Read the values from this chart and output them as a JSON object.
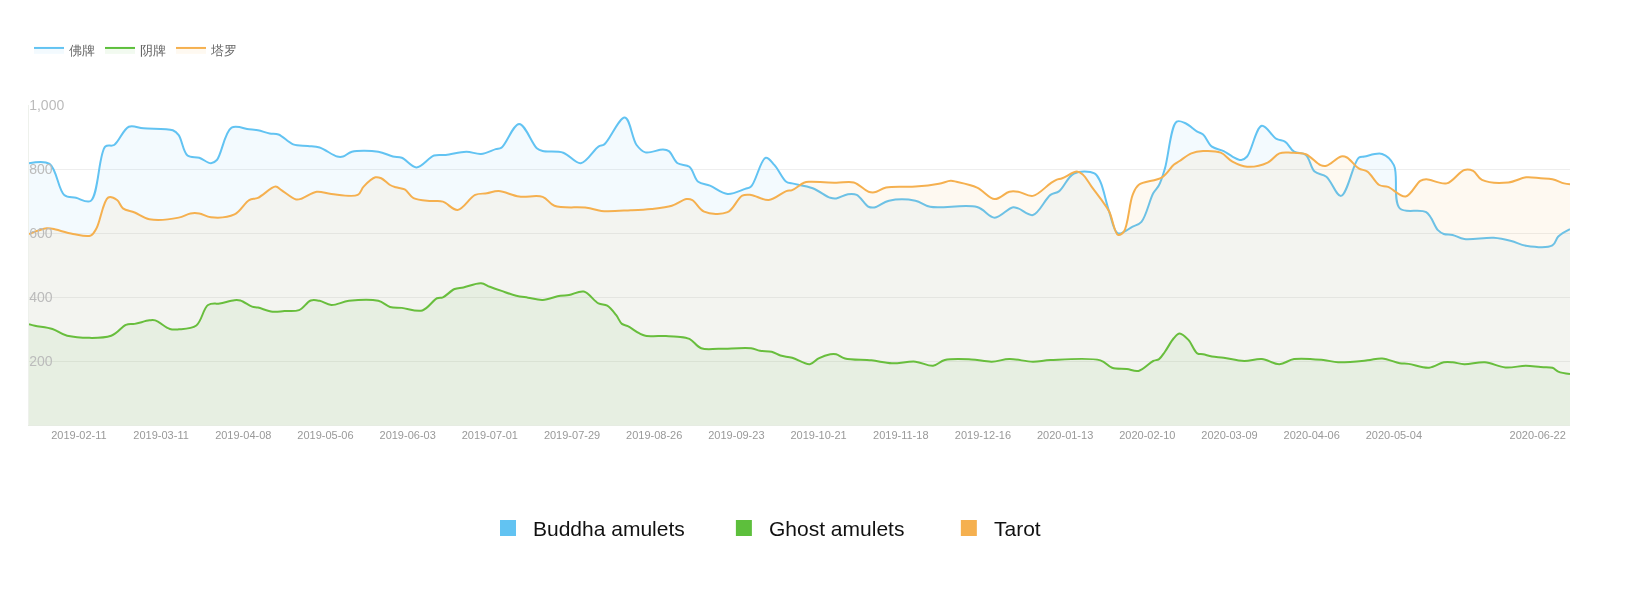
{
  "chart_data": {
    "type": "area",
    "xlim": [
      "2019-01-25",
      "2020-07-03"
    ],
    "xticks": [
      "2019-02-11",
      "2019-03-11",
      "2019-04-08",
      "2019-05-06",
      "2019-06-03",
      "2019-07-01",
      "2019-07-29",
      "2019-08-26",
      "2019-09-23",
      "2019-10-21",
      "2019-11-18",
      "2019-12-16",
      "2020-01-13",
      "2020-02-10",
      "2020-03-09",
      "2020-04-06",
      "2020-05-04",
      "2020-06-22"
    ],
    "ylim": [
      0,
      1000
    ],
    "yticks": [
      200,
      400,
      600,
      800,
      {
        "value": 1000,
        "label": "1,000"
      }
    ],
    "grid": "y",
    "legend": "top left",
    "annotations": [
      "Buddha amulets",
      "Ghost amulets",
      "Tarot"
    ],
    "series": [
      {
        "name": "佛牌",
        "color": "#62c3f2",
        "x": [
          "2019-01-25",
          "2019-02-01",
          "2019-02-06",
          "2019-02-10",
          "2019-02-15",
          "2019-02-20",
          "2019-02-23",
          "2019-02-28",
          "2019-03-05",
          "2019-03-15",
          "2019-03-17",
          "2019-03-20",
          "2019-03-24",
          "2019-03-28",
          "2019-03-30",
          "2019-04-04",
          "2019-04-10",
          "2019-04-13",
          "2019-04-17",
          "2019-04-20",
          "2019-04-25",
          "2019-04-30",
          "2019-05-04",
          "2019-05-10",
          "2019-05-12",
          "2019-05-15",
          "2019-05-24",
          "2019-05-29",
          "2019-06-01",
          "2019-06-06",
          "2019-06-12",
          "2019-06-16",
          "2019-06-23",
          "2019-06-28",
          "2019-07-03",
          "2019-07-05",
          "2019-07-11",
          "2019-07-17",
          "2019-07-19",
          "2019-07-26",
          "2019-08-01",
          "2019-08-07",
          "2019-08-09",
          "2019-08-16",
          "2019-08-20",
          "2019-08-23",
          "2019-08-29",
          "2019-08-31",
          "2019-09-03",
          "2019-09-07",
          "2019-09-10",
          "2019-09-14",
          "2019-09-20",
          "2019-09-26",
          "2019-09-28",
          "2019-10-03",
          "2019-10-06",
          "2019-10-10",
          "2019-10-12",
          "2019-10-19",
          "2019-10-25",
          "2019-10-27",
          "2019-10-31",
          "2019-11-03",
          "2019-11-07",
          "2019-11-09",
          "2019-11-14",
          "2019-11-23",
          "2019-11-28",
          "2019-12-14",
          "2019-12-20",
          "2019-12-26",
          "2019-12-28",
          "2020-01-02",
          "2020-01-08",
          "2020-01-11",
          "2020-01-16",
          "2020-01-23",
          "2020-01-25",
          "2020-01-28",
          "2020-01-31",
          "2020-02-05",
          "2020-02-08",
          "2020-02-12",
          "2020-02-14",
          "2020-02-16",
          "2020-02-20",
          "2020-02-23",
          "2020-02-27",
          "2020-02-29",
          "2020-03-03",
          "2020-03-07",
          "2020-03-10",
          "2020-03-13",
          "2020-03-15",
          "2020-03-20",
          "2020-03-25",
          "2020-03-28",
          "2020-03-31",
          "2020-04-04",
          "2020-04-07",
          "2020-04-11",
          "2020-04-16",
          "2020-04-22",
          "2020-04-24",
          "2020-04-30",
          "2020-05-04",
          "2020-05-06",
          "2020-05-15",
          "2020-05-19",
          "2020-05-21",
          "2020-05-24",
          "2020-05-28",
          "2020-06-07",
          "2020-06-13",
          "2020-06-18",
          "2020-06-27",
          "2020-06-29",
          "2020-07-03"
        ],
        "values": [
          818,
          816,
          719,
          710,
          700,
          870,
          875,
          932,
          927,
          921,
          906,
          842,
          835,
          818,
          828,
          929,
          924,
          921,
          911,
          908,
          877,
          872,
          867,
          839,
          839,
          854,
          854,
          839,
          835,
          805,
          842,
          844,
          854,
          847,
          862,
          867,
          941,
          865,
          856,
          851,
          818,
          870,
          877,
          961,
          875,
          852,
          861,
          856,
          818,
          807,
          760,
          748,
          722,
          738,
          745,
          835,
          812,
          760,
          755,
          740,
          710,
          708,
          721,
          719,
          682,
          680,
          701,
          701,
          682,
          681,
          648,
          680,
          677,
          656,
          719,
          731,
          786,
          786,
          760,
          667,
          599,
          620,
          635,
          724,
          750,
          802,
          948,
          943,
          917,
          908,
          870,
          856,
          839,
          828,
          839,
          935,
          894,
          885,
          854,
          844,
          792,
          776,
          716,
          835,
          839,
          847,
          812,
          677,
          665,
          609,
          597,
          594,
          581,
          585,
          575,
          560,
          561,
          589,
          612
        ]
      },
      {
        "name": "阴牌",
        "color": "#5dbf3c",
        "x": [
          "2019-01-25",
          "2019-01-27",
          "2019-02-02",
          "2019-02-07",
          "2019-02-22",
          "2019-02-27",
          "2019-03-02",
          "2019-03-07",
          "2019-03-09",
          "2019-03-14",
          "2019-03-17",
          "2019-03-23",
          "2019-03-27",
          "2019-03-31",
          "2019-04-05",
          "2019-04-07",
          "2019-04-11",
          "2019-04-13",
          "2019-04-18",
          "2019-04-22",
          "2019-04-27",
          "2019-05-01",
          "2019-05-04",
          "2019-05-08",
          "2019-05-14",
          "2019-05-24",
          "2019-05-28",
          "2019-06-01",
          "2019-06-08",
          "2019-06-13",
          "2019-06-15",
          "2019-06-19",
          "2019-06-22",
          "2019-06-28",
          "2019-07-01",
          "2019-07-05",
          "2019-07-10",
          "2019-07-14",
          "2019-07-19",
          "2019-07-25",
          "2019-07-28",
          "2019-08-02",
          "2019-08-07",
          "2019-08-10",
          "2019-08-13",
          "2019-08-15",
          "2019-08-17",
          "2019-08-21",
          "2019-08-23",
          "2019-08-30",
          "2019-09-03",
          "2019-09-07",
          "2019-09-11",
          "2019-09-17",
          "2019-09-28",
          "2019-10-01",
          "2019-10-05",
          "2019-10-08",
          "2019-10-12",
          "2019-10-18",
          "2019-10-21",
          "2019-10-25",
          "2019-10-27",
          "2019-10-30",
          "2019-11-08",
          "2019-11-15",
          "2019-11-23",
          "2019-11-29",
          "2019-12-03",
          "2019-12-12",
          "2019-12-19",
          "2019-12-25",
          "2020-01-02",
          "2020-01-08",
          "2020-01-25",
          "2020-01-29",
          "2020-02-03",
          "2020-02-07",
          "2020-02-12",
          "2020-02-14",
          "2020-02-16",
          "2020-02-19",
          "2020-02-21",
          "2020-02-24",
          "2020-02-27",
          "2020-02-29",
          "2020-03-03",
          "2020-03-07",
          "2020-03-14",
          "2020-03-20",
          "2020-03-26",
          "2020-03-31",
          "2020-04-10",
          "2020-04-15",
          "2020-04-25",
          "2020-04-30",
          "2020-05-06",
          "2020-05-09",
          "2020-05-16",
          "2020-05-21",
          "2020-05-24",
          "2020-05-28",
          "2020-06-04",
          "2020-06-11",
          "2020-06-18",
          "2020-06-23",
          "2020-06-27",
          "2020-06-29",
          "2020-07-03"
        ],
        "values": [
          315,
          310,
          300,
          279,
          279,
          313,
          316,
          327,
          327,
          300,
          299,
          311,
          375,
          380,
          390,
          389,
          370,
          367,
          354,
          356,
          359,
          389,
          388,
          375,
          388,
          388,
          369,
          366,
          358,
          396,
          399,
          425,
          430,
          443,
          432,
          419,
          404,
          398,
          391,
          404,
          406,
          417,
          380,
          373,
          344,
          316,
          309,
          286,
          279,
          278,
          276,
          269,
          240,
          238,
          240,
          232,
          229,
          217,
          210,
          190,
          208,
          221,
          221,
          208,
          202,
          193,
          198,
          185,
          203,
          205,
          198,
          206,
          198,
          203,
          202,
          179,
          175,
          169,
          200,
          206,
          229,
          271,
          286,
          266,
          224,
          221,
          214,
          210,
          200,
          206,
          190,
          206,
          203,
          196,
          202,
          208,
          193,
          191,
          179,
          196,
          196,
          190,
          196,
          180,
          185,
          181,
          179,
          167,
          159
        ]
      },
      {
        "name": "塔罗",
        "color": "#f5b04f",
        "x": [
          "2019-01-25",
          "2019-01-31",
          "2019-02-02",
          "2019-02-09",
          "2019-02-15",
          "2019-02-17",
          "2019-02-21",
          "2019-02-24",
          "2019-02-26",
          "2019-03-02",
          "2019-03-07",
          "2019-03-17",
          "2019-03-21",
          "2019-03-24",
          "2019-03-28",
          "2019-04-05",
          "2019-04-10",
          "2019-04-13",
          "2019-04-19",
          "2019-04-21",
          "2019-04-26",
          "2019-04-28",
          "2019-05-03",
          "2019-05-08",
          "2019-05-17",
          "2019-05-19",
          "2019-05-23",
          "2019-05-25",
          "2019-05-28",
          "2019-05-30",
          "2019-06-02",
          "2019-06-05",
          "2019-06-11",
          "2019-06-15",
          "2019-06-20",
          "2019-06-26",
          "2019-06-30",
          "2019-07-04",
          "2019-07-11",
          "2019-07-19",
          "2019-07-23",
          "2019-08-03",
          "2019-08-08",
          "2019-08-18",
          "2019-08-25",
          "2019-09-01",
          "2019-09-06",
          "2019-09-08",
          "2019-09-12",
          "2019-09-20",
          "2019-09-25",
          "2019-09-28",
          "2019-10-04",
          "2019-10-10",
          "2019-10-12",
          "2019-10-16",
          "2019-10-18",
          "2019-10-27",
          "2019-11-02",
          "2019-11-07",
          "2019-11-09",
          "2019-11-13",
          "2019-11-23",
          "2019-12-01",
          "2019-12-05",
          "2019-12-07",
          "2019-12-14",
          "2019-12-20",
          "2019-12-25",
          "2019-12-28",
          "2020-01-02",
          "2020-01-08",
          "2020-01-10",
          "2020-01-12",
          "2020-01-17",
          "2020-01-19",
          "2020-01-22",
          "2020-01-25",
          "2020-01-28",
          "2020-01-31",
          "2020-02-02",
          "2020-02-05",
          "2020-02-07",
          "2020-02-15",
          "2020-02-19",
          "2020-02-21",
          "2020-02-25",
          "2020-02-29",
          "2020-03-06",
          "2020-03-10",
          "2020-03-15",
          "2020-03-22",
          "2020-03-26",
          "2020-03-30",
          "2020-04-04",
          "2020-04-09",
          "2020-04-11",
          "2020-04-16",
          "2020-04-18",
          "2020-04-22",
          "2020-04-25",
          "2020-04-29",
          "2020-05-02",
          "2020-05-08",
          "2020-05-13",
          "2020-05-15",
          "2020-05-22",
          "2020-05-28",
          "2020-05-31",
          "2020-06-03",
          "2020-06-12",
          "2020-06-18",
          "2020-06-23",
          "2020-06-27",
          "2020-07-01",
          "2020-07-03"
        ],
        "values": [
          597,
          615,
          613,
          597,
          592,
          615,
          711,
          703,
          677,
          664,
          643,
          648,
          661,
          661,
          649,
          658,
          703,
          710,
          745,
          734,
          705,
          708,
          729,
          722,
          719,
          745,
          774,
          771,
          750,
          743,
          736,
          709,
          700,
          698,
          672,
          719,
          724,
          731,
          714,
          713,
          685,
          679,
          669,
          671,
          675,
          685,
          706,
          703,
          667,
          665,
          717,
          719,
          703,
          731,
          734,
          757,
          760,
          757,
          758,
          729,
          727,
          742,
          745,
          754,
          763,
          760,
          742,
          706,
          729,
          729,
          716,
          755,
          766,
          771,
          792,
          783,
          745,
          708,
          667,
          594,
          604,
          719,
          750,
          774,
          813,
          825,
          849,
          856,
          851,
          823,
          807,
          820,
          849,
          851,
          846,
          812,
          810,
          839,
          836,
          802,
          792,
          750,
          744,
          714,
          763,
          768,
          755,
          797,
          794,
          766,
          758,
          774,
          771,
          768,
          755,
          752
        ]
      }
    ]
  }
}
